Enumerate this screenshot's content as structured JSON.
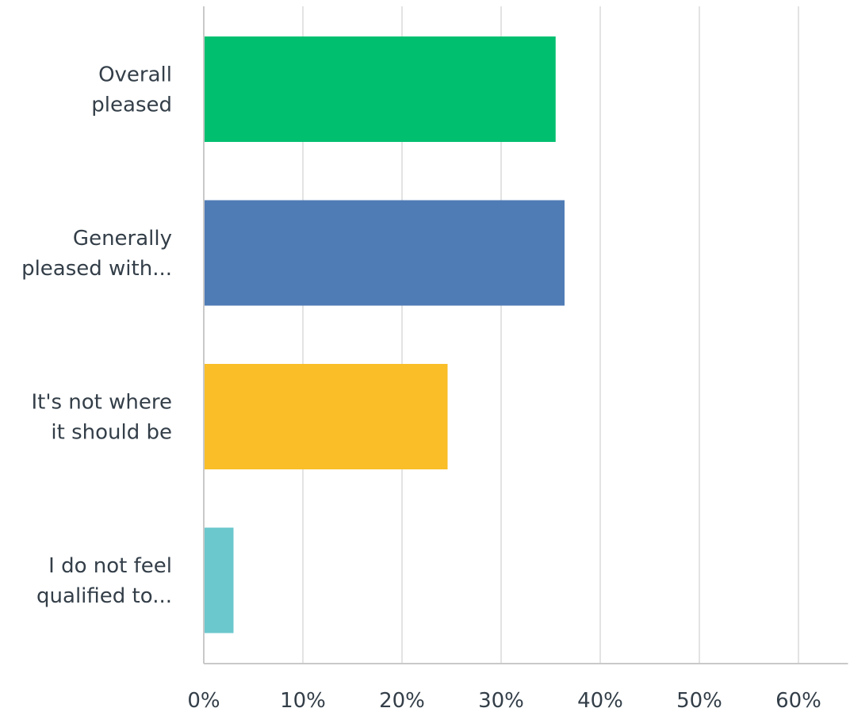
{
  "chart_data": {
    "type": "bar",
    "orientation": "horizontal",
    "categories": [
      [
        "Overall",
        "pleased"
      ],
      [
        "Generally",
        "pleased with..."
      ],
      [
        "It's not where",
        "it should be"
      ],
      [
        "I do not feel",
        "qualified to..."
      ]
    ],
    "values": [
      35.5,
      36.4,
      24.6,
      3.0
    ],
    "colors": [
      "#00bf6f",
      "#507cb6",
      "#f9be28",
      "#6bc8cd"
    ],
    "xlim": [
      0,
      65
    ],
    "x_ticks": [
      0,
      10,
      20,
      30,
      40,
      50,
      60
    ],
    "x_tick_labels": [
      "0%",
      "10%",
      "20%",
      "30%",
      "40%",
      "50%",
      "60%"
    ],
    "title": "",
    "xlabel": "",
    "ylabel": "",
    "grid": "vertical",
    "legend": "none"
  }
}
